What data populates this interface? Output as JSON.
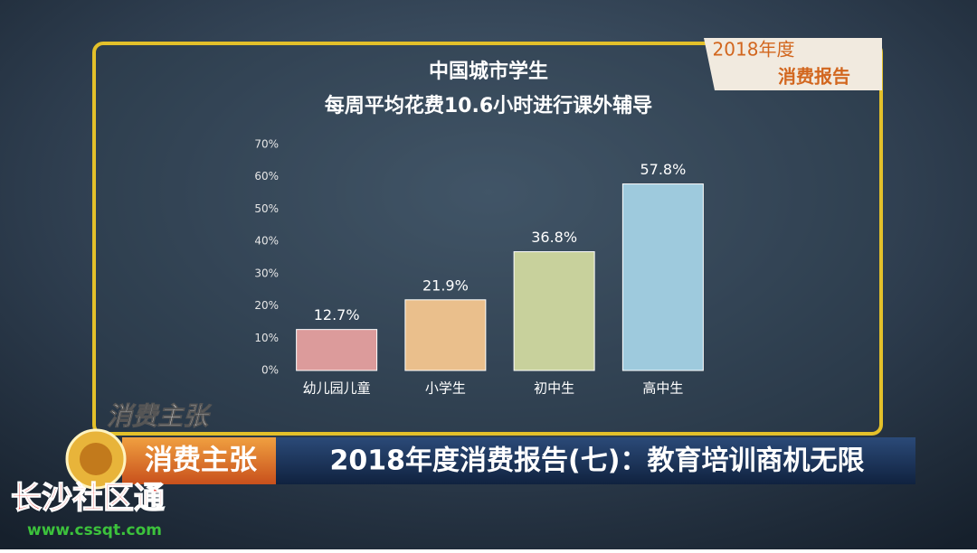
{
  "chart_data": {
    "type": "bar",
    "title": "中国城市学生",
    "subtitle": "每周平均花费10.6小时进行课外辅导",
    "categories": [
      "幼儿园儿童",
      "小学生",
      "初中生",
      "高中生"
    ],
    "values": [
      12.7,
      21.9,
      36.8,
      57.8
    ],
    "value_labels": [
      "12.7%",
      "21.9%",
      "36.8%",
      "57.8%"
    ],
    "colors": [
      "#dc9b9b",
      "#eabf8c",
      "#c8d19c",
      "#9ecadd"
    ],
    "ylim": [
      0,
      70
    ],
    "yticks": [
      {
        "value": 0,
        "label": "0%"
      },
      {
        "value": 10,
        "label": "10%"
      },
      {
        "value": 20,
        "label": "20%"
      },
      {
        "value": 30,
        "label": "30%"
      },
      {
        "value": 40,
        "label": "40%"
      },
      {
        "value": 50,
        "label": "50%"
      },
      {
        "value": 60,
        "label": "60%"
      },
      {
        "value": 70,
        "label": "70%"
      }
    ],
    "grid": false
  },
  "badge": {
    "line1": "2018年度",
    "line2": "消费报告"
  },
  "logo": "消费主张",
  "banner": {
    "program": "消费主张",
    "headline": "2018年度消费报告(七)：教育培训商机无限"
  },
  "watermark": {
    "name": "长沙社区通",
    "url": "www.cssqt.com"
  }
}
